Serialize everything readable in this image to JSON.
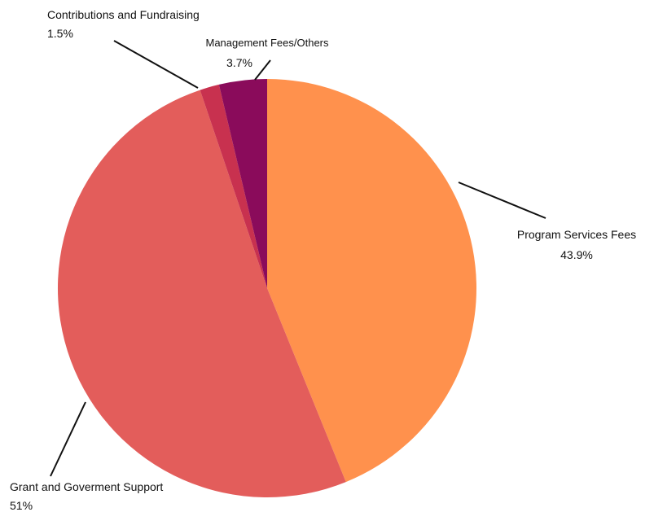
{
  "chart_data": {
    "type": "pie",
    "title": "",
    "start": "top",
    "direction": "clockwise",
    "slices": [
      {
        "label": "Program Services Fees",
        "value_label": "43.9%",
        "value": 43.9,
        "color": "#FF914D"
      },
      {
        "label": "Grant and Goverment Support",
        "value_label": "51%",
        "value": 51.0,
        "color": "#E35D5B"
      },
      {
        "label": "Contributions and Fundraising",
        "value_label": "1.5%",
        "value": 1.5,
        "color": "#C8314F"
      },
      {
        "label": "Management Fees/Others",
        "value_label": "3.7%",
        "value": 3.7,
        "color": "#8A0B5B"
      }
    ]
  }
}
